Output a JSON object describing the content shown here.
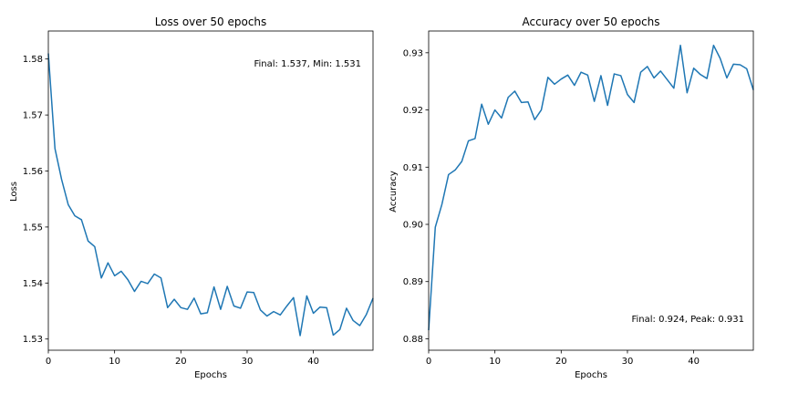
{
  "chart_data": [
    {
      "type": "line",
      "title": "Loss over 50 epochs",
      "xlabel": "Epochs",
      "ylabel": "Loss",
      "xlim": [
        0,
        49
      ],
      "ylim": [
        1.528,
        1.585
      ],
      "xticks": [
        0,
        10,
        20,
        30,
        40
      ],
      "yticks": [
        1.53,
        1.54,
        1.55,
        1.56,
        1.57,
        1.58
      ],
      "ytick_labels": [
        "1.53",
        "1.54",
        "1.55",
        "1.56",
        "1.57",
        "1.58"
      ],
      "grid": false,
      "line_color": "#1f77b4",
      "annotation": "Final: 1.537, Min: 1.531",
      "series": [
        {
          "x": [
            0,
            1,
            2,
            3,
            4,
            5,
            6,
            7,
            8,
            9,
            10,
            11,
            12,
            13,
            14,
            15,
            16,
            17,
            18,
            19,
            20,
            21,
            22,
            23,
            24,
            25,
            26,
            27,
            28,
            29,
            30,
            31,
            32,
            33,
            34,
            35,
            36,
            37,
            38,
            39,
            40,
            41,
            42,
            43,
            44,
            45,
            46,
            47,
            48,
            49
          ],
          "values": [
            1.581,
            1.564,
            1.5585,
            1.554,
            1.552,
            1.5513,
            1.5475,
            1.5465,
            1.5409,
            1.5436,
            1.5413,
            1.5421,
            1.5406,
            1.5385,
            1.5403,
            1.5399,
            1.5416,
            1.5409,
            1.5356,
            1.5371,
            1.5356,
            1.5353,
            1.5373,
            1.5345,
            1.5347,
            1.5393,
            1.5353,
            1.5394,
            1.5359,
            1.5355,
            1.5384,
            1.5383,
            1.5352,
            1.5341,
            1.5349,
            1.5343,
            1.5359,
            1.5374,
            1.5306,
            1.5377,
            1.5346,
            1.5357,
            1.5356,
            1.5307,
            1.5317,
            1.5355,
            1.5333,
            1.5324,
            1.5344,
            1.5373
          ]
        }
      ]
    },
    {
      "type": "line",
      "title": "Accuracy over 50 epochs",
      "xlabel": "Epochs",
      "ylabel": "Accuracy",
      "xlim": [
        0,
        49
      ],
      "ylim": [
        0.878,
        0.9338
      ],
      "xticks": [
        0,
        10,
        20,
        30,
        40
      ],
      "yticks": [
        0.88,
        0.89,
        0.9,
        0.91,
        0.92,
        0.93
      ],
      "ytick_labels": [
        "0.88",
        "0.89",
        "0.90",
        "0.91",
        "0.92",
        "0.93"
      ],
      "grid": false,
      "line_color": "#1f77b4",
      "annotation": "Final: 0.924, Peak: 0.931",
      "series": [
        {
          "x": [
            0,
            1,
            2,
            3,
            4,
            5,
            6,
            7,
            8,
            9,
            10,
            11,
            12,
            13,
            14,
            15,
            16,
            17,
            18,
            19,
            20,
            21,
            22,
            23,
            24,
            25,
            26,
            27,
            28,
            29,
            30,
            31,
            32,
            33,
            34,
            35,
            36,
            37,
            38,
            39,
            40,
            41,
            42,
            43,
            44,
            45,
            46,
            47,
            48,
            49
          ],
          "values": [
            0.8815,
            0.8995,
            0.9035,
            0.9087,
            0.9095,
            0.911,
            0.9146,
            0.915,
            0.921,
            0.9175,
            0.92,
            0.9186,
            0.9222,
            0.9233,
            0.9213,
            0.9214,
            0.9183,
            0.92,
            0.9257,
            0.9245,
            0.9254,
            0.9261,
            0.9243,
            0.9266,
            0.9261,
            0.9215,
            0.926,
            0.9208,
            0.9263,
            0.926,
            0.9227,
            0.9213,
            0.9266,
            0.9276,
            0.9256,
            0.9268,
            0.9253,
            0.9238,
            0.9313,
            0.923,
            0.9273,
            0.9262,
            0.9255,
            0.9313,
            0.929,
            0.9256,
            0.928,
            0.9279,
            0.9272,
            0.9235
          ]
        }
      ]
    }
  ]
}
